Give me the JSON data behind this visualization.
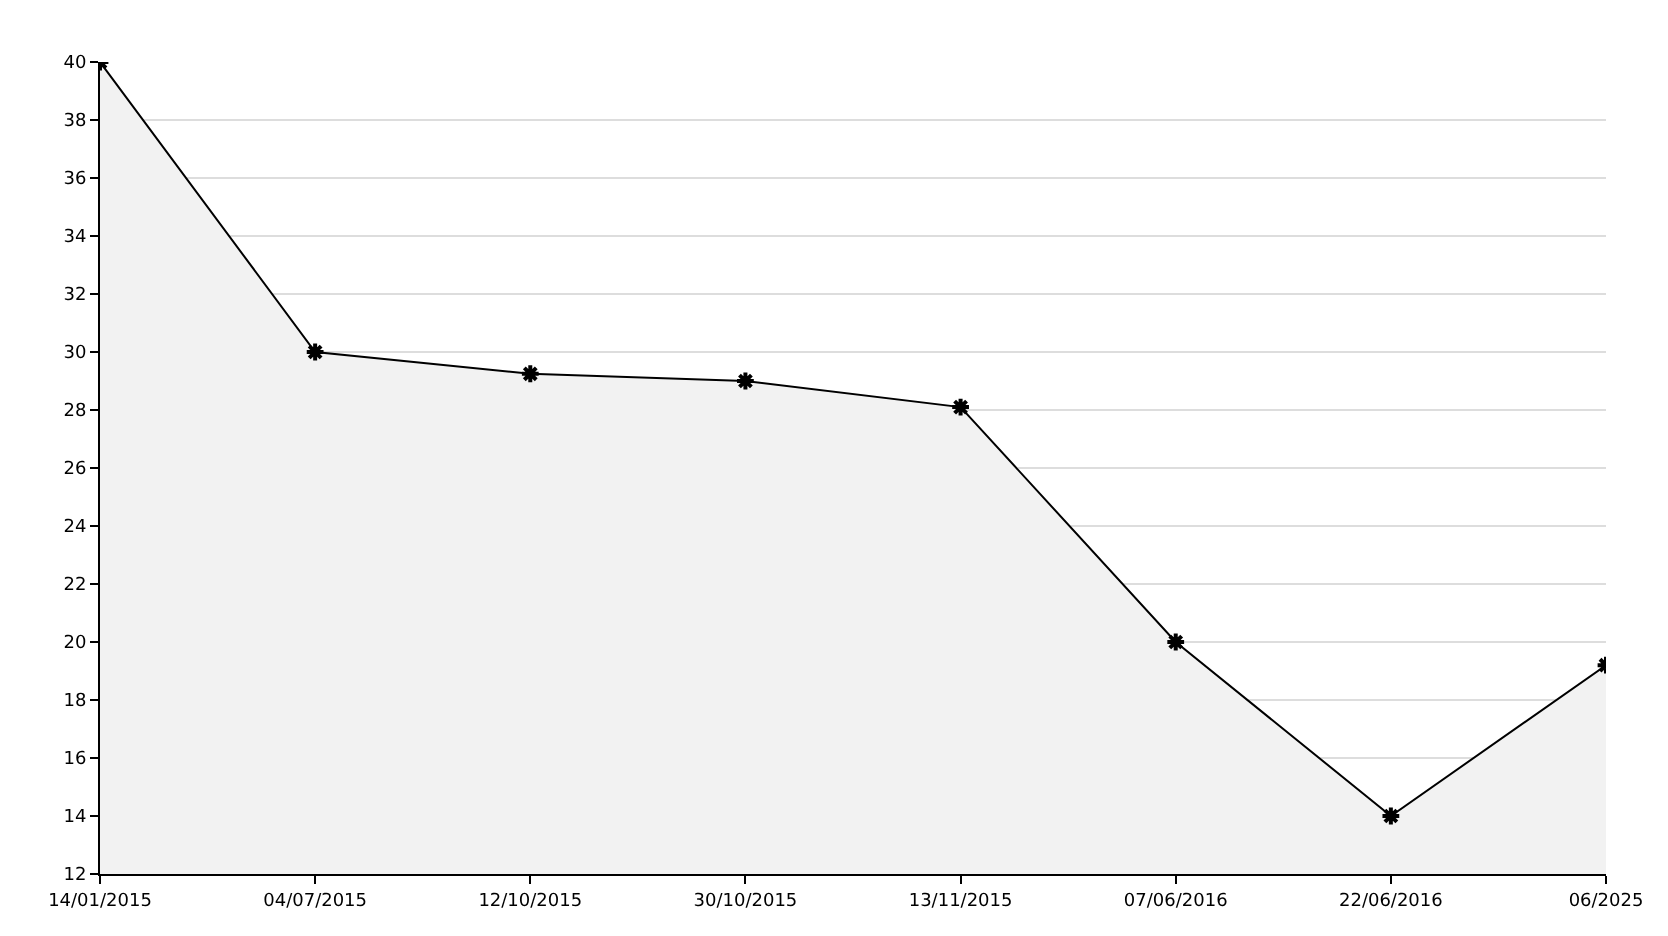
{
  "chart_data": {
    "type": "area",
    "categories": [
      "14/01/2015",
      "04/07/2015",
      "12/10/2015",
      "30/10/2015",
      "13/11/2015",
      "07/06/2016",
      "22/06/2016",
      "06/2025"
    ],
    "series": [
      {
        "color": "#000000",
        "values": [
          40,
          30,
          29.25,
          29,
          28.1,
          20,
          14,
          19.2
        ]
      }
    ],
    "ylim": [
      12,
      40
    ],
    "yticks": [
      12,
      14,
      16,
      18,
      20,
      22,
      24,
      26,
      28,
      30,
      32,
      34,
      36,
      38,
      40
    ],
    "grid": "y",
    "marker": "cross",
    "line_style": "solid"
  }
}
